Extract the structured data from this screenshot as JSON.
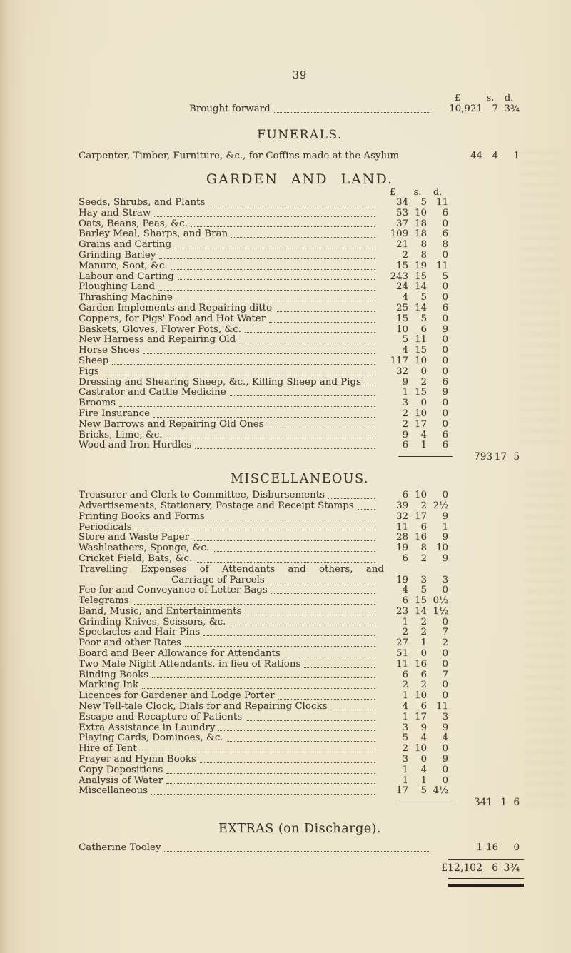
{
  "page": {
    "number": "39"
  },
  "currency": {
    "pounds": "£",
    "shillings": "s.",
    "pence": "d."
  },
  "brought_forward": {
    "label": "Brought forward",
    "pounds": "10,921",
    "shillings": "7",
    "pence": "3¾"
  },
  "funerals": {
    "title": "FUNERALS.",
    "item": {
      "label": "Carpenter, Timber, Furniture, &c., for Coffins made at the Asylum",
      "pounds": "44",
      "shillings": "4",
      "pence": "1"
    }
  },
  "garden": {
    "title": "GARDEN AND LAND.",
    "items": [
      {
        "label": "Seeds, Shrubs, and Plants",
        "pounds": "34",
        "shillings": "5",
        "pence": "11"
      },
      {
        "label": "Hay and Straw",
        "pounds": "53",
        "shillings": "10",
        "pence": "6"
      },
      {
        "label": "Oats, Beans, Peas, &c.",
        "pounds": "37",
        "shillings": "18",
        "pence": "0"
      },
      {
        "label": "Barley Meal, Sharps, and Bran",
        "pounds": "109",
        "shillings": "18",
        "pence": "6"
      },
      {
        "label": "Grains and Carting",
        "pounds": "21",
        "shillings": "8",
        "pence": "8"
      },
      {
        "label": "Grinding Barley",
        "pounds": "2",
        "shillings": "8",
        "pence": "0"
      },
      {
        "label": "Manure, Soot, &c.",
        "pounds": "15",
        "shillings": "19",
        "pence": "11"
      },
      {
        "label": "Labour and Carting",
        "pounds": "243",
        "shillings": "15",
        "pence": "5"
      },
      {
        "label": "Ploughing Land",
        "pounds": "24",
        "shillings": "14",
        "pence": "0"
      },
      {
        "label": "Thrashing Machine",
        "pounds": "4",
        "shillings": "5",
        "pence": "0"
      },
      {
        "label": "Garden Implements and Repairing ditto",
        "pounds": "25",
        "shillings": "14",
        "pence": "6"
      },
      {
        "label": "Coppers, for Pigs' Food and Hot Water",
        "pounds": "15",
        "shillings": "5",
        "pence": "0"
      },
      {
        "label": "Baskets, Gloves, Flower Pots, &c.",
        "pounds": "10",
        "shillings": "6",
        "pence": "9"
      },
      {
        "label": "New Harness and Repairing Old",
        "pounds": "5",
        "shillings": "11",
        "pence": "0"
      },
      {
        "label": "Horse Shoes",
        "pounds": "4",
        "shillings": "15",
        "pence": "0"
      },
      {
        "label": "Sheep",
        "pounds": "117",
        "shillings": "10",
        "pence": "0"
      },
      {
        "label": "Pigs",
        "pounds": "32",
        "shillings": "0",
        "pence": "0"
      },
      {
        "label": "Dressing and Shearing Sheep, &c., Killing Sheep and Pigs",
        "pounds": "9",
        "shillings": "2",
        "pence": "6"
      },
      {
        "label": "Castrator and Cattle Medicine",
        "pounds": "1",
        "shillings": "15",
        "pence": "9"
      },
      {
        "label": "Brooms",
        "pounds": "3",
        "shillings": "0",
        "pence": "0"
      },
      {
        "label": "Fire Insurance",
        "pounds": "2",
        "shillings": "10",
        "pence": "0"
      },
      {
        "label": "New Barrows and Repairing Old Ones",
        "pounds": "2",
        "shillings": "17",
        "pence": "0"
      },
      {
        "label": "Bricks, Lime, &c.",
        "pounds": "9",
        "shillings": "4",
        "pence": "6"
      },
      {
        "label": "Wood and Iron Hurdles",
        "pounds": "6",
        "shillings": "1",
        "pence": "6"
      }
    ],
    "subtotal": {
      "pounds": "793",
      "shillings": "17",
      "pence": "5"
    }
  },
  "miscellaneous": {
    "title": "MISCELLANEOUS.",
    "items": [
      {
        "label": "Treasurer and Clerk to Committee, Disbursements",
        "pounds": "6",
        "shillings": "10",
        "pence": "0"
      },
      {
        "label": "Advertisements, Stationery, Postage and Receipt Stamps",
        "pounds": "39",
        "shillings": "2",
        "pence": "2½"
      },
      {
        "label": "Printing Books and Forms",
        "pounds": "32",
        "shillings": "17",
        "pence": "9"
      },
      {
        "label": "Periodicals",
        "pounds": "11",
        "shillings": "6",
        "pence": "1"
      },
      {
        "label": "Store and Waste Paper",
        "pounds": "28",
        "shillings": "16",
        "pence": "9"
      },
      {
        "label": "Washleathers, Sponge, &c.",
        "pounds": "19",
        "shillings": "8",
        "pence": "10"
      },
      {
        "label": "Cricket Field, Bats, &c.",
        "pounds": "6",
        "shillings": "2",
        "pence": "9"
      },
      {
        "label": "Travelling Expenses of Attendants and others, and",
        "label2": "Carriage of Parcels",
        "pounds": "19",
        "shillings": "3",
        "pence": "3"
      },
      {
        "label": "Fee for and Conveyance of Letter Bags",
        "pounds": "4",
        "shillings": "5",
        "pence": "0"
      },
      {
        "label": "Telegrams",
        "pounds": "6",
        "shillings": "15",
        "pence": "0½"
      },
      {
        "label": "Band, Music, and Entertainments",
        "pounds": "23",
        "shillings": "14",
        "pence": "1½"
      },
      {
        "label": "Grinding Knives, Scissors, &c.",
        "pounds": "1",
        "shillings": "2",
        "pence": "0"
      },
      {
        "label": "Spectacles and Hair Pins",
        "pounds": "2",
        "shillings": "2",
        "pence": "7"
      },
      {
        "label": "Poor and other Rates",
        "pounds": "27",
        "shillings": "1",
        "pence": "2"
      },
      {
        "label": "Board and Beer Allowance for Attendants",
        "pounds": "51",
        "shillings": "0",
        "pence": "0"
      },
      {
        "label": "Two Male Night Attendants, in lieu of Rations",
        "pounds": "11",
        "shillings": "16",
        "pence": "0"
      },
      {
        "label": "Binding Books",
        "pounds": "6",
        "shillings": "6",
        "pence": "7"
      },
      {
        "label": "Marking Ink",
        "pounds": "2",
        "shillings": "2",
        "pence": "0"
      },
      {
        "label": "Licences for Gardener and Lodge Porter",
        "pounds": "1",
        "shillings": "10",
        "pence": "0"
      },
      {
        "label": "New Tell-tale Clock, Dials for and Repairing Clocks",
        "pounds": "4",
        "shillings": "6",
        "pence": "11"
      },
      {
        "label": "Escape and Recapture of Patients",
        "pounds": "1",
        "shillings": "17",
        "pence": "3"
      },
      {
        "label": "Extra Assistance in Laundry",
        "pounds": "3",
        "shillings": "9",
        "pence": "9"
      },
      {
        "label": "Playing Cards, Dominoes, &c.",
        "pounds": "5",
        "shillings": "4",
        "pence": "4"
      },
      {
        "label": "Hire of Tent",
        "pounds": "2",
        "shillings": "10",
        "pence": "0"
      },
      {
        "label": "Prayer and Hymn Books",
        "pounds": "3",
        "shillings": "0",
        "pence": "9"
      },
      {
        "label": "Copy Depositions",
        "pounds": "1",
        "shillings": "4",
        "pence": "0"
      },
      {
        "label": "Analysis of Water",
        "pounds": "1",
        "shillings": "1",
        "pence": "0"
      },
      {
        "label": "Miscellaneous",
        "pounds": "17",
        "shillings": "5",
        "pence": "4½"
      }
    ],
    "subtotal": {
      "pounds": "341",
      "shillings": "1",
      "pence": "6"
    }
  },
  "extras": {
    "title": "EXTRAS (on Discharge).",
    "items": [
      {
        "label": "Catherine Tooley",
        "pounds": "1",
        "shillings": "16",
        "pence": "0"
      }
    ]
  },
  "grand_total": {
    "pounds": "£12,102",
    "shillings": "6",
    "pence": "3¾"
  }
}
